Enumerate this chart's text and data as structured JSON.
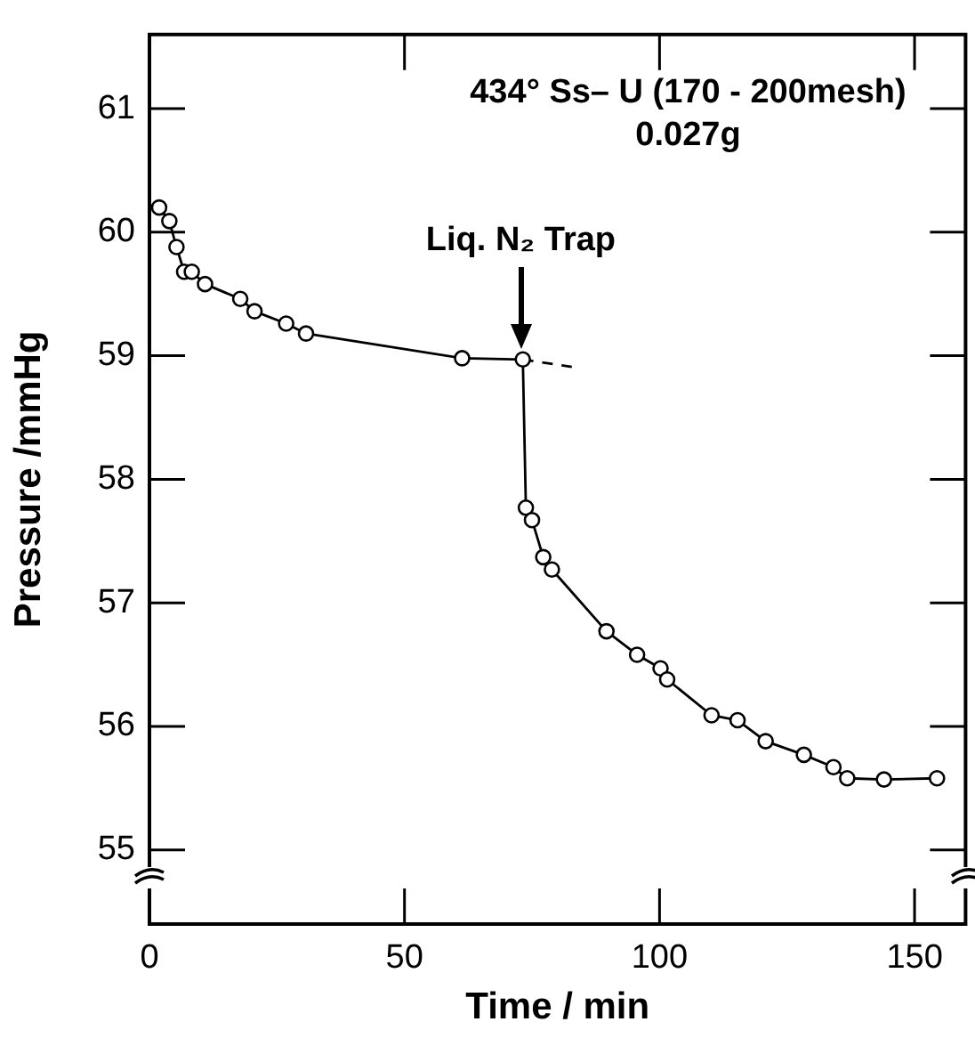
{
  "chart_data": {
    "type": "line",
    "xlabel": "Time / min",
    "ylabel": "Pressure /mmHg",
    "xlim": [
      0,
      160
    ],
    "xticks": [
      0,
      50,
      100,
      150
    ],
    "ylim": [
      54.4,
      61.6
    ],
    "yticks": [
      55,
      56,
      57,
      58,
      59,
      60,
      61
    ],
    "grid": false,
    "legend": false,
    "annotations": [
      "434° Ss– U (170 - 200mesh)",
      "0.027g",
      "Liq. N₂ Trap"
    ],
    "series": [
      {
        "color": "#000000",
        "marker": "circle",
        "line_style": "solid",
        "x": [
          1.9,
          3.9,
          5.3,
          6.8,
          8.3,
          10.9,
          17.8,
          20.6,
          26.8,
          30.7,
          61.3,
          73.2,
          73.8,
          75.0,
          77.2,
          78.9,
          89.6,
          95.6,
          100.2,
          101.5,
          110.2,
          115.3,
          120.8,
          128.3,
          134.1,
          136.8,
          144.0,
          154.4
        ],
        "values": [
          60.2,
          60.09,
          59.88,
          59.68,
          59.68,
          59.58,
          59.46,
          59.36,
          59.26,
          59.18,
          58.98,
          58.97,
          57.77,
          57.67,
          57.37,
          57.27,
          56.77,
          56.58,
          56.47,
          56.38,
          56.09,
          56.05,
          55.88,
          55.77,
          55.67,
          55.58,
          55.57,
          55.58
        ]
      },
      {
        "color": "#000000",
        "marker": "none",
        "line_style": "dashed",
        "x": [
          73.2,
          82.8
        ],
        "values": [
          58.97,
          58.91
        ]
      }
    ]
  }
}
